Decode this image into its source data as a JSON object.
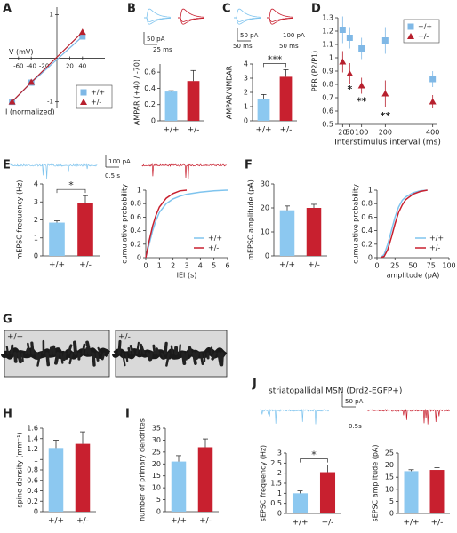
{
  "chart_data": [
    {
      "type": "iv",
      "panel": "A",
      "xlabel": "V (mV)",
      "ylabel": "I (normalized)",
      "xlim": [
        -75,
        50
      ],
      "ylim": [
        -1.15,
        1.05
      ],
      "xticks": [
        -60,
        -40,
        -20,
        20,
        40
      ],
      "yticks": [
        -1,
        1
      ],
      "legend": "lower right",
      "x": [
        -70,
        -40,
        40
      ],
      "series": [
        {
          "name": "+/+",
          "color": "#7fb8e6",
          "marker": "square",
          "values": [
            -1,
            -0.56,
            0.5
          ]
        },
        {
          "name": "+/-",
          "color": "#b7202e",
          "marker": "triangle",
          "values": [
            -1,
            -0.55,
            0.6
          ]
        }
      ]
    },
    {
      "type": "bar",
      "panel": "B",
      "ylabel": "AMPAR (+40 / -70)",
      "categories": [
        "+/+",
        "+/-"
      ],
      "values": [
        0.36,
        0.49
      ],
      "errors": [
        0.01,
        0.13
      ],
      "colors": [
        "#8cc8f0",
        "#c8202f"
      ],
      "ylim": [
        0,
        0.7
      ],
      "yticks": [
        0,
        0.2,
        0.4,
        0.6
      ],
      "scale_labels": [
        "50 pA",
        "25 ms"
      ]
    },
    {
      "type": "bar",
      "panel": "C",
      "ylabel": "AMPAR/NMDAR",
      "categories": [
        "+/+",
        "+/-"
      ],
      "values": [
        1.55,
        3.1
      ],
      "errors": [
        0.3,
        0.5
      ],
      "colors": [
        "#8cc8f0",
        "#c8202f"
      ],
      "ylim": [
        0,
        4
      ],
      "yticks": [
        0,
        1,
        2,
        3,
        4
      ],
      "annotation": "***",
      "scale_labels": [
        "50 pA",
        "50 ms",
        "100 pA",
        "50 ms"
      ]
    },
    {
      "type": "scatter",
      "panel": "D",
      "ylabel": "PPR (P2/P1)",
      "xlabel": "Interstimulus interval (ms)",
      "xlim": [
        0,
        420
      ],
      "ylim": [
        0.5,
        1.3
      ],
      "xticks": [
        20,
        50,
        100,
        200,
        400
      ],
      "yticks": [
        0.5,
        0.6,
        0.7,
        0.8,
        0.9,
        1,
        1.1,
        1.2,
        1.3
      ],
      "legend": "upper right",
      "x": [
        20,
        50,
        100,
        200,
        400
      ],
      "series": [
        {
          "name": "+/+",
          "color": "#7fb8e6",
          "marker": "square",
          "values": [
            1.21,
            1.15,
            1.07,
            1.13,
            0.84
          ],
          "errors": [
            0.1,
            0.08,
            0.08,
            0.1,
            0.06
          ]
        },
        {
          "name": "+/-",
          "color": "#b7202e",
          "marker": "triangle",
          "values": [
            0.97,
            0.88,
            0.79,
            0.73,
            0.67
          ],
          "errors": [
            0.08,
            0.08,
            0.06,
            0.1,
            0.05
          ]
        }
      ],
      "annotations": [
        {
          "x": 50,
          "y": 0.76,
          "text": "*"
        },
        {
          "x": 100,
          "y": 0.67,
          "text": "**"
        },
        {
          "x": 200,
          "y": 0.56,
          "text": "**"
        }
      ]
    },
    {
      "type": "bar",
      "panel": "E",
      "ylabel": "mEPSC frequency (Hz)",
      "categories": [
        "+/+",
        "+/-"
      ],
      "values": [
        1.85,
        2.95
      ],
      "errors": [
        0.1,
        0.4
      ],
      "colors": [
        "#8cc8f0",
        "#c8202f"
      ],
      "ylim": [
        0,
        4
      ],
      "yticks": [
        0,
        1,
        2,
        3,
        4
      ],
      "annotation": "*",
      "scale_labels": [
        "100 pA",
        "0.5 s"
      ]
    },
    {
      "type": "line",
      "ylabel": "cumulative probability",
      "xlabel": "IEI (s)",
      "xlim": [
        0,
        6
      ],
      "ylim": [
        0,
        1
      ],
      "xticks": [
        0,
        1,
        2,
        3,
        4,
        5,
        6
      ],
      "yticks": [
        0,
        0.2,
        0.4,
        0.6,
        0.8,
        1
      ],
      "legend": "lower right",
      "x": [
        0,
        0.25,
        0.5,
        0.75,
        1,
        1.5,
        2,
        2.5,
        3,
        4,
        5,
        6
      ],
      "series": [
        {
          "name": "+/+",
          "color": "#7fc4ee",
          "values": [
            0,
            0.2,
            0.4,
            0.55,
            0.67,
            0.8,
            0.87,
            0.91,
            0.94,
            0.97,
            0.99,
            1
          ]
        },
        {
          "name": "+/-",
          "color": "#c8202f",
          "values": [
            0,
            0.25,
            0.47,
            0.63,
            0.75,
            0.88,
            0.95,
            0.99,
            1,
            null,
            null,
            null
          ]
        }
      ]
    },
    {
      "type": "bar",
      "panel": "F",
      "ylabel": "mEPSC amplitude (pA)",
      "categories": [
        "+/+",
        "+/-"
      ],
      "values": [
        19,
        20
      ],
      "errors": [
        1.8,
        1.5
      ],
      "colors": [
        "#8cc8f0",
        "#c8202f"
      ],
      "ylim": [
        0,
        30
      ],
      "yticks": [
        0,
        10,
        20,
        30
      ]
    },
    {
      "type": "line",
      "ylabel": "cumulative probability",
      "xlabel": "amplitude (pA)",
      "xlim": [
        0,
        100
      ],
      "ylim": [
        0,
        1
      ],
      "xticks": [
        0,
        25,
        50,
        75,
        100
      ],
      "yticks": [
        0,
        0.2,
        0.4,
        0.6,
        0.8,
        1
      ],
      "legend": "lower right",
      "x": [
        5,
        10,
        15,
        20,
        25,
        30,
        35,
        40,
        50,
        60,
        70
      ],
      "series": [
        {
          "name": "+/+",
          "color": "#7fc4ee",
          "values": [
            0,
            0.05,
            0.2,
            0.4,
            0.6,
            0.75,
            0.85,
            0.9,
            0.96,
            0.99,
            1
          ]
        },
        {
          "name": "+/-",
          "color": "#c8202f",
          "values": [
            0,
            0.02,
            0.12,
            0.3,
            0.5,
            0.67,
            0.78,
            0.86,
            0.94,
            0.98,
            1
          ]
        }
      ]
    },
    {
      "type": "image",
      "panel": "G",
      "labels": [
        "+/+",
        "+/-"
      ]
    },
    {
      "type": "bar",
      "panel": "H",
      "ylabel": "spine density (mm⁻¹)",
      "categories": [
        "+/+",
        "+/-"
      ],
      "values": [
        1.22,
        1.3
      ],
      "errors": [
        0.15,
        0.23
      ],
      "colors": [
        "#8cc8f0",
        "#c8202f"
      ],
      "ylim": [
        0,
        1.6
      ],
      "yticks": [
        0,
        0.2,
        0.4,
        0.6,
        0.8,
        1,
        1.2,
        1.4,
        1.6
      ]
    },
    {
      "type": "bar",
      "panel": "I",
      "ylabel": "number of primary dendrites",
      "categories": [
        "+/+",
        "+/-"
      ],
      "values": [
        21,
        27
      ],
      "errors": [
        2.5,
        3.5
      ],
      "colors": [
        "#8cc8f0",
        "#c8202f"
      ],
      "ylim": [
        0,
        35
      ],
      "yticks": [
        0,
        5,
        10,
        15,
        20,
        25,
        30,
        35
      ]
    },
    {
      "type": "bar",
      "panel": "J",
      "title": "striatopallidal MSN (Drd2-EGFP+)",
      "ylabel": "sEPSC frequency (Hz)",
      "categories": [
        "+/+",
        "+/-"
      ],
      "values": [
        1.0,
        2.05
      ],
      "errors": [
        0.12,
        0.35
      ],
      "colors": [
        "#8cc8f0",
        "#c8202f"
      ],
      "ylim": [
        0,
        3
      ],
      "yticks": [
        0,
        0.5,
        1,
        1.5,
        2,
        2.5,
        3
      ],
      "annotation": "*",
      "scale_labels": [
        "50 pA",
        "0.5s"
      ]
    },
    {
      "type": "bar",
      "ylabel": "sEPSC amplitude (pA)",
      "categories": [
        "+/+",
        "+/-"
      ],
      "values": [
        17.5,
        18
      ],
      "errors": [
        0.6,
        0.9
      ],
      "colors": [
        "#8cc8f0",
        "#c8202f"
      ],
      "ylim": [
        0,
        25
      ],
      "yticks": [
        0,
        5,
        10,
        15,
        20,
        25
      ]
    }
  ]
}
